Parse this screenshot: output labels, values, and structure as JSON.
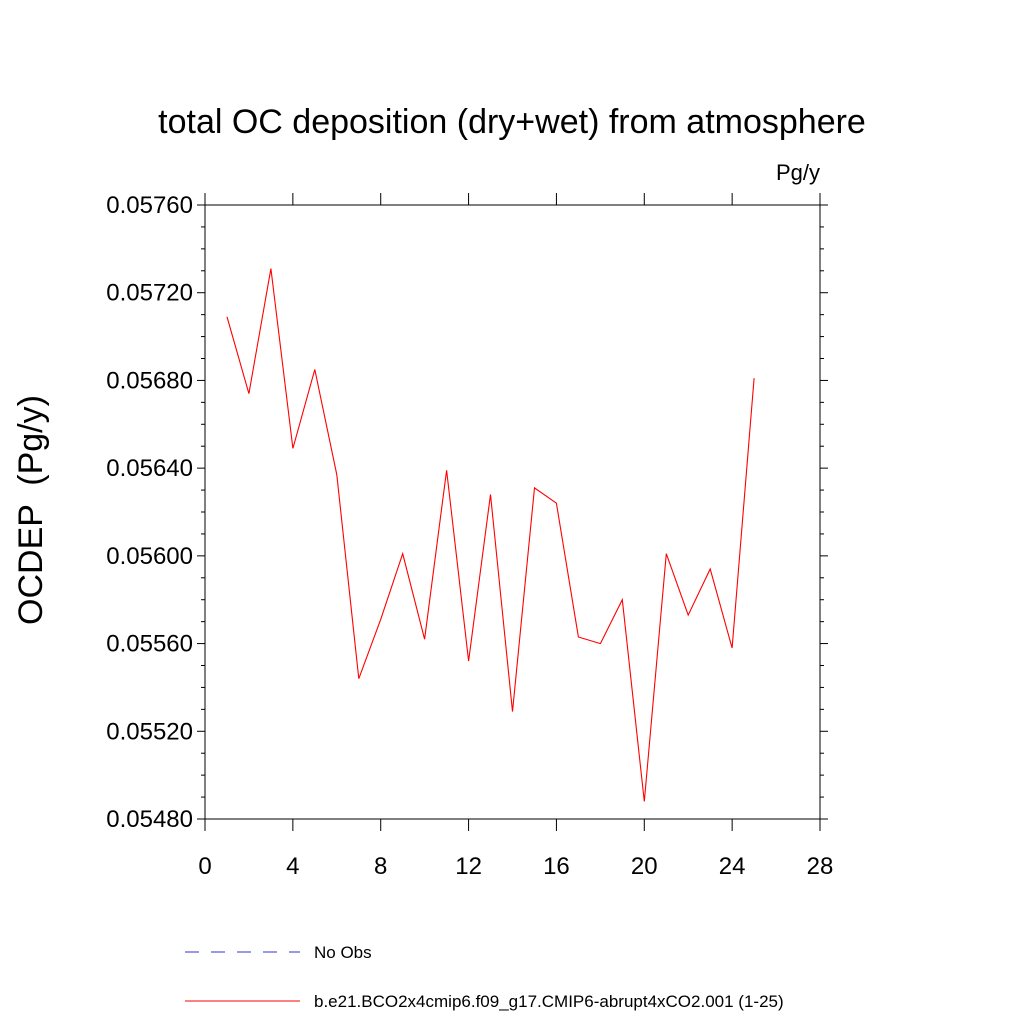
{
  "chart_data": {
    "type": "line",
    "title": "total OC deposition (dry+wet) from atmosphere",
    "units": "Pg/y",
    "ylabel": "OCDEP  (Pg/y)",
    "xlabel": "",
    "xlim": [
      0,
      28
    ],
    "ylim": [
      0.0548,
      0.0576
    ],
    "xticks": [
      0,
      4,
      8,
      12,
      16,
      20,
      24,
      28
    ],
    "xtick_labels": [
      "0",
      "4",
      "8",
      "12",
      "16",
      "20",
      "24",
      "28"
    ],
    "yticks": [
      0.0548,
      0.0552,
      0.0556,
      0.056,
      0.0564,
      0.0568,
      0.0572,
      0.0576
    ],
    "ytick_labels": [
      "0.05480",
      "0.05520",
      "0.05560",
      "0.05600",
      "0.05640",
      "0.05680",
      "0.05720",
      "0.05760"
    ],
    "grid": false,
    "legend_position": "bottom",
    "series": [
      {
        "name": "b.e21.BCO2x4cmip6.f09_g17.CMIP6-abrupt4xCO2.001 (1-25)",
        "color": "#ff0000",
        "style": "solid",
        "x": [
          1,
          2,
          3,
          4,
          5,
          6,
          7,
          8,
          9,
          10,
          11,
          12,
          13,
          14,
          15,
          16,
          17,
          18,
          19,
          20,
          21,
          22,
          23,
          24,
          25
        ],
        "y": [
          0.05709,
          0.05674,
          0.05731,
          0.05649,
          0.05685,
          0.05637,
          0.05544,
          0.05571,
          0.05601,
          0.05562,
          0.05639,
          0.05552,
          0.05628,
          0.05529,
          0.05631,
          0.05624,
          0.05563,
          0.0556,
          0.0558,
          0.05488,
          0.05601,
          0.05573,
          0.05594,
          0.05558,
          0.05681
        ]
      }
    ],
    "legend": [
      {
        "label": "No Obs",
        "color": "#3333cc",
        "style": "dashed"
      },
      {
        "label": "b.e21.BCO2x4cmip6.f09_g17.CMIP6-abrupt4xCO2.001 (1-25)",
        "color": "#ff0000",
        "style": "solid"
      }
    ]
  }
}
